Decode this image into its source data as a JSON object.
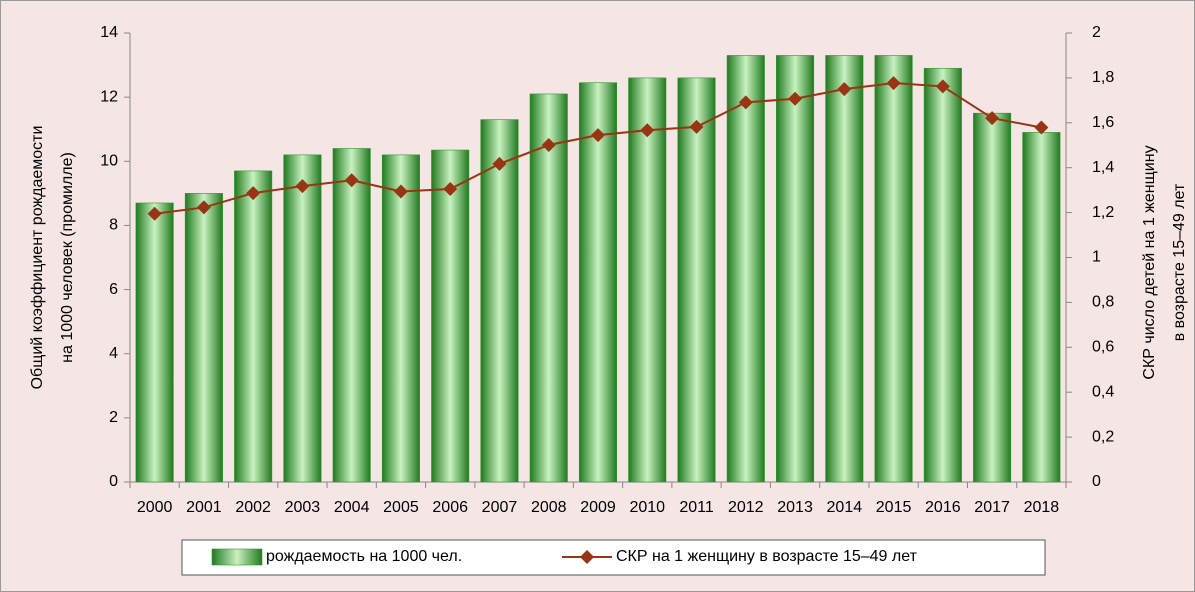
{
  "chart_data": {
    "type": "bar-line",
    "categories": [
      "2000",
      "2001",
      "2002",
      "2003",
      "2004",
      "2005",
      "2006",
      "2007",
      "2008",
      "2009",
      "2010",
      "2011",
      "2012",
      "2013",
      "2014",
      "2015",
      "2016",
      "2017",
      "2018"
    ],
    "ylabel": [
      "Общий коэффициент рождаемости",
      "на 1000 человек (промилле)"
    ],
    "y2label": [
      "СКР число детей на 1 женщину",
      "в возрасте 15–49 лет"
    ],
    "ylim": [
      0,
      14
    ],
    "yticks": [
      0,
      2,
      4,
      6,
      8,
      10,
      12,
      14
    ],
    "y2lim": [
      0,
      2
    ],
    "y2ticks": [
      0,
      {
        "value": 0.2,
        "label": "0,2"
      },
      {
        "value": 0.4,
        "label": "0,4"
      },
      {
        "value": 0.6,
        "label": "0,6"
      },
      {
        "value": 0.8,
        "label": "0,8"
      },
      1,
      {
        "value": 1.2,
        "label": "1,2"
      },
      {
        "value": 1.4,
        "label": "1,4"
      },
      {
        "value": 1.6,
        "label": "1,6"
      },
      {
        "value": 1.8,
        "label": "1,8"
      },
      2
    ],
    "series": [
      {
        "name": "рождаемость на 1000 чел.",
        "type": "bar",
        "color": "#2e9a2e",
        "values": [
          8.7,
          9.0,
          9.7,
          10.2,
          10.4,
          10.2,
          10.35,
          11.3,
          12.1,
          12.45,
          12.6,
          12.6,
          13.3,
          13.3,
          13.3,
          13.3,
          12.9,
          11.5,
          10.9
        ]
      },
      {
        "name": "СКР на 1 женщину в возрасте 15–49 лет",
        "type": "line",
        "axis": "y2",
        "color": "#9a3412",
        "values": [
          1.195,
          1.223,
          1.287,
          1.318,
          1.344,
          1.294,
          1.305,
          1.417,
          1.501,
          1.545,
          1.567,
          1.582,
          1.691,
          1.707,
          1.75,
          1.777,
          1.762,
          1.621,
          1.579
        ]
      }
    ]
  }
}
